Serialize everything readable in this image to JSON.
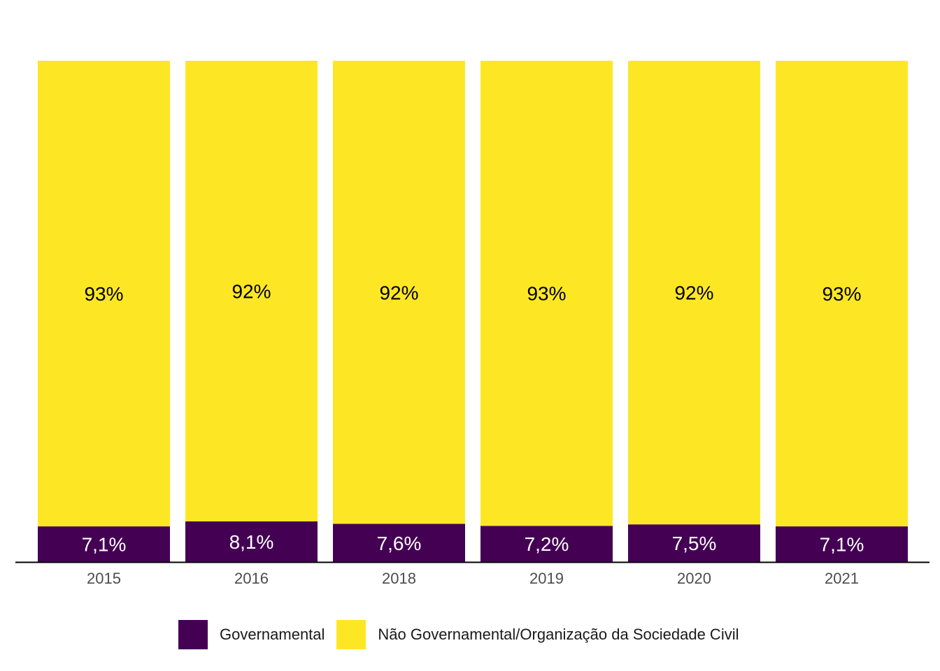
{
  "chart_data": {
    "type": "bar",
    "stacked": true,
    "normalized": true,
    "categories": [
      "2015",
      "2016",
      "2018",
      "2019",
      "2020",
      "2021"
    ],
    "series": [
      {
        "name": "Governamental",
        "color": "#440154",
        "label_color": "#ffffff",
        "values": [
          7.1,
          8.1,
          7.6,
          7.2,
          7.5,
          7.1
        ],
        "labels": [
          "7,1%",
          "8,1%",
          "7,6%",
          "7,2%",
          "7,5%",
          "7,1%"
        ]
      },
      {
        "name": "Não Governamental/Organização da Sociedade Civil",
        "color": "#fde725",
        "label_color": "#000000",
        "values": [
          92.9,
          91.9,
          92.4,
          92.8,
          92.5,
          92.9
        ],
        "labels": [
          "93%",
          "92%",
          "92%",
          "93%",
          "92%",
          "93%"
        ]
      }
    ],
    "title": "",
    "xlabel": "",
    "ylabel": "",
    "ylim": [
      0,
      100
    ],
    "grid": false,
    "legend_position": "bottom",
    "axis_line_color": "#000000"
  }
}
